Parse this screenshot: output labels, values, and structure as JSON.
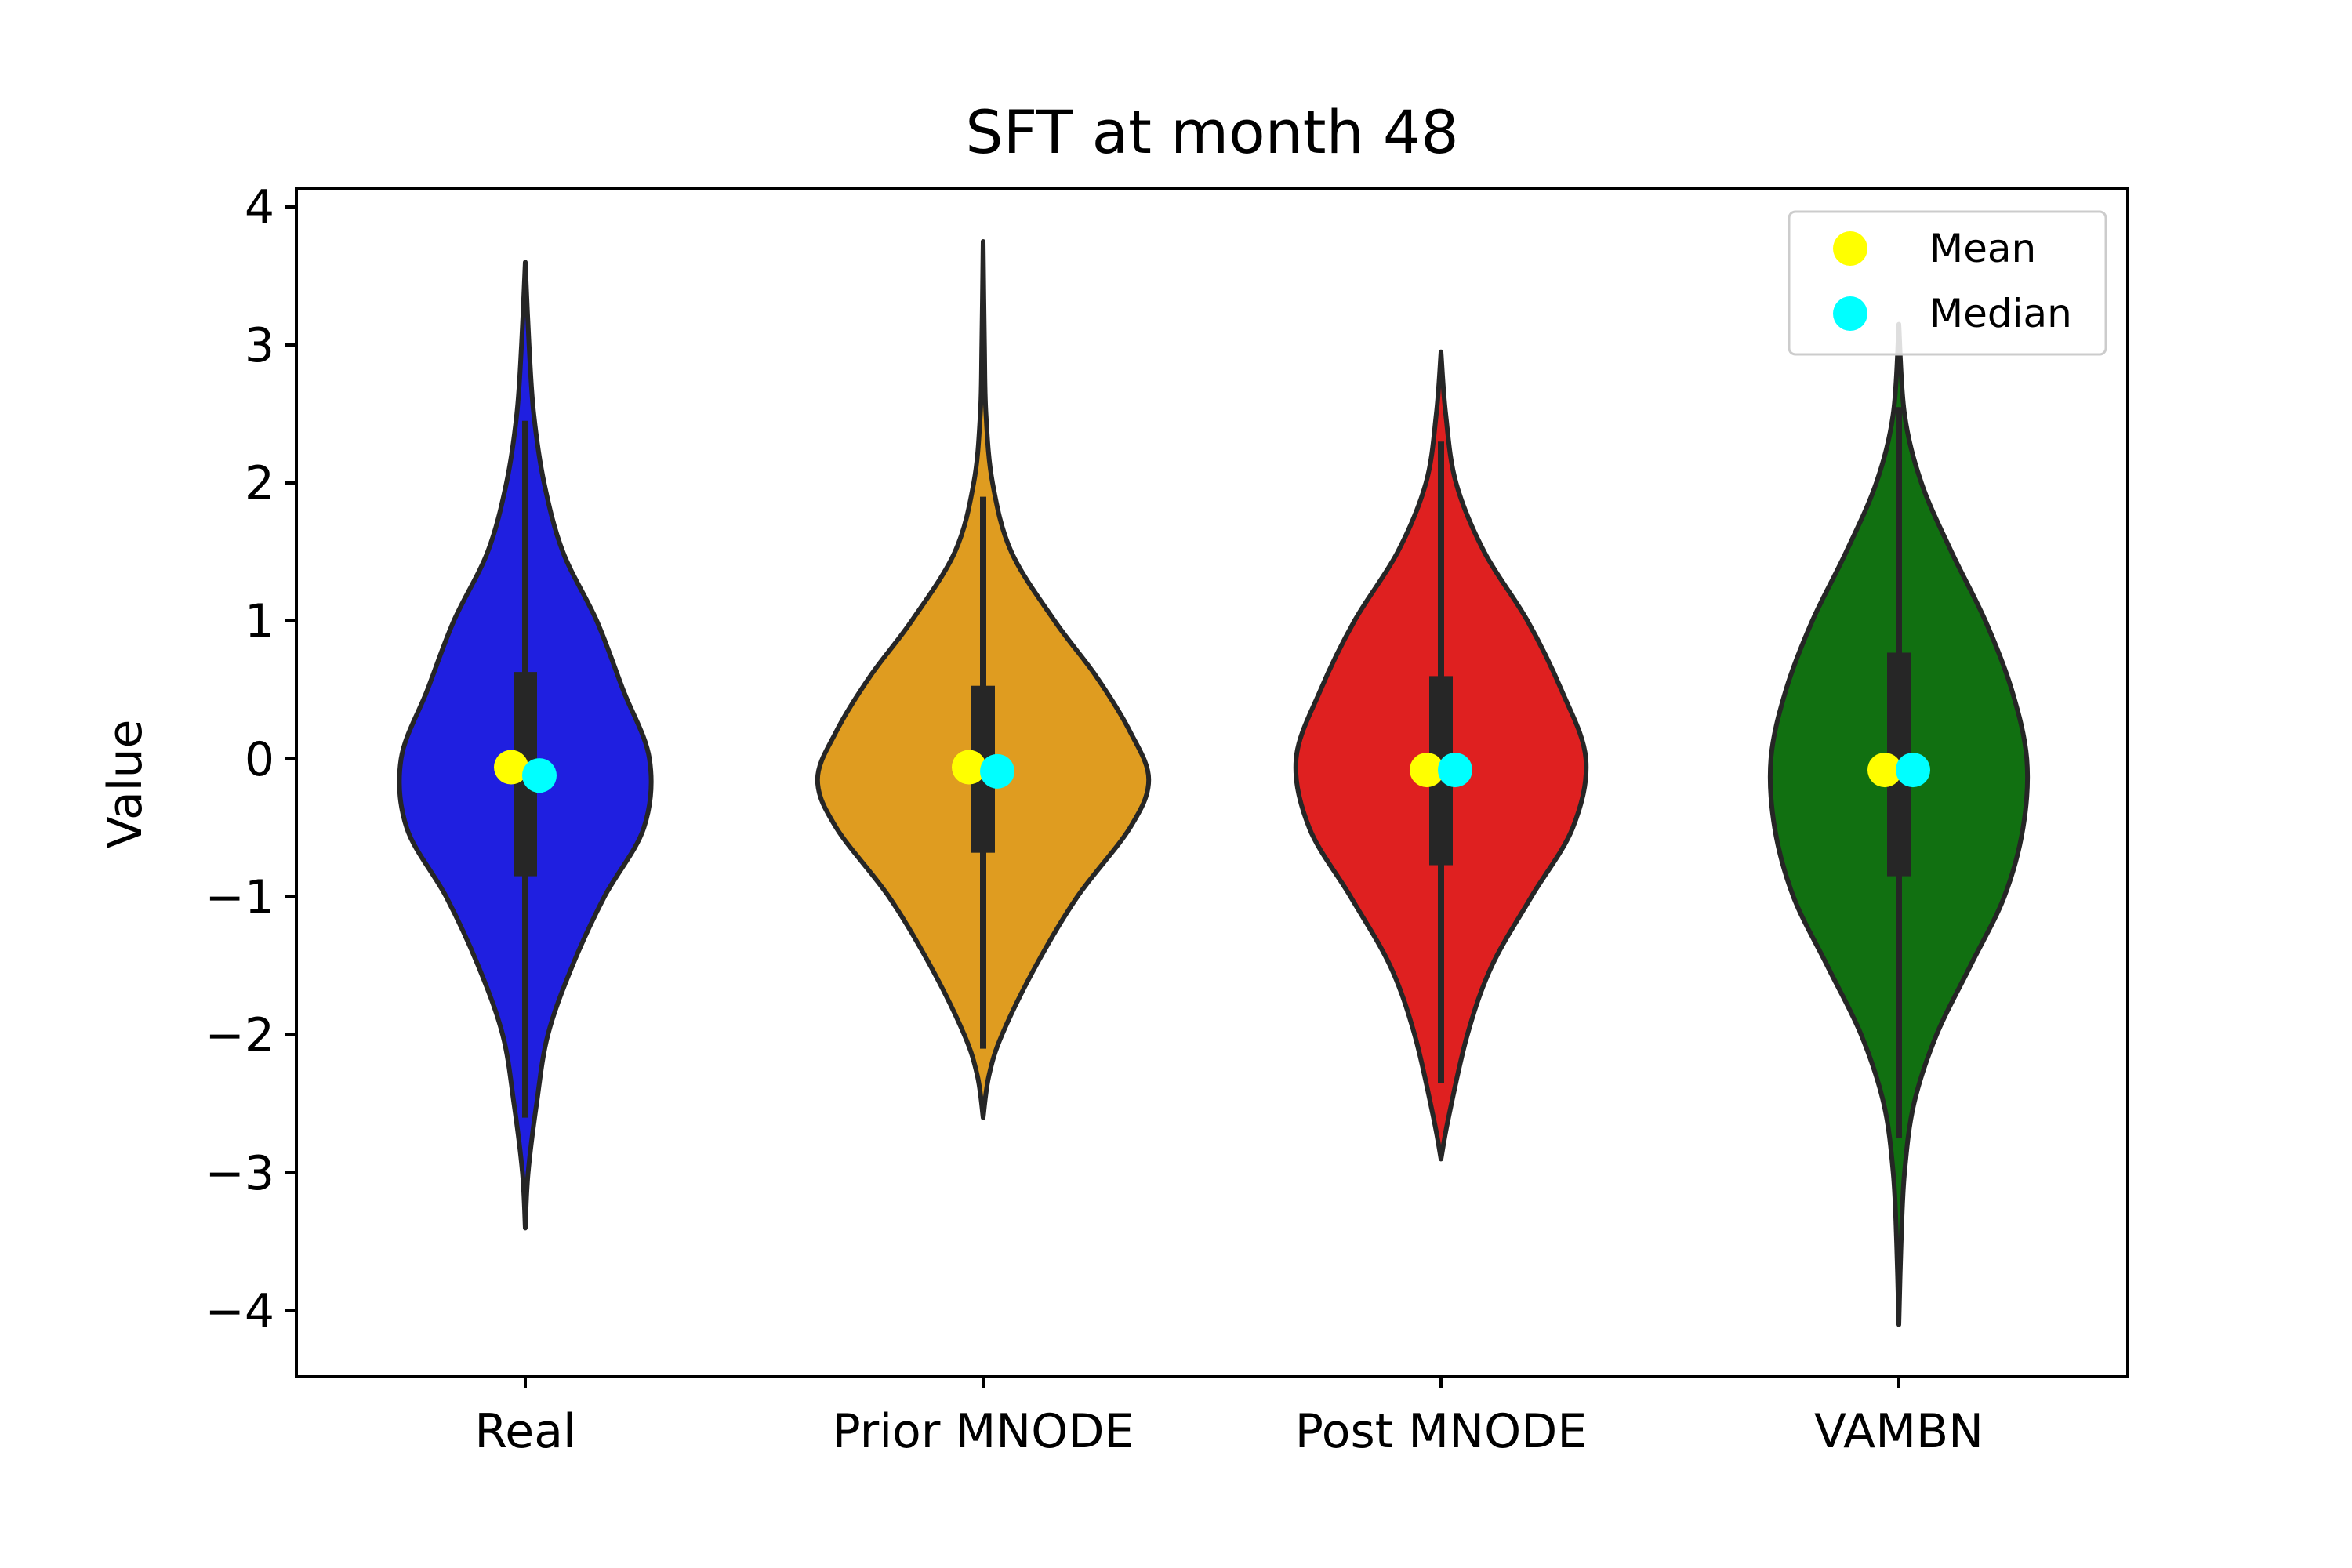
{
  "chart_data": {
    "type": "violin",
    "title": "SFT at month 48",
    "xlabel": "",
    "ylabel": "Value",
    "ylim": [
      -4.5,
      4.15
    ],
    "yticks": [
      {
        "value": 4,
        "label": "4"
      },
      {
        "value": 3,
        "label": "3"
      },
      {
        "value": 2,
        "label": "2"
      },
      {
        "value": 1,
        "label": "1"
      },
      {
        "value": 0,
        "label": "0"
      },
      {
        "value": -1,
        "label": "−1"
      },
      {
        "value": -2,
        "label": "−2"
      },
      {
        "value": -3,
        "label": "−3"
      },
      {
        "value": -4,
        "label": "−4"
      }
    ],
    "grid": false,
    "legend": {
      "placement": "top-right",
      "entries": [
        {
          "label": "Mean",
          "color": "#ffff00"
        },
        {
          "label": "Median",
          "color": "#00ffff"
        }
      ]
    },
    "categories": [
      "Real",
      "Prior MNODE",
      "Post MNODE",
      "VAMBN"
    ],
    "violins": [
      {
        "category": "Real",
        "color": "#1f1fe0",
        "min": -3.4,
        "max": 3.6,
        "whisker_low": -2.6,
        "whisker_high": 2.45,
        "q1": -0.85,
        "q3": 0.63,
        "mean": -0.06,
        "median": -0.12,
        "profile": [
          [
            -3.4,
            0.0
          ],
          [
            -3.0,
            0.015
          ],
          [
            -2.5,
            0.06
          ],
          [
            -2.0,
            0.12
          ],
          [
            -1.5,
            0.25
          ],
          [
            -1.0,
            0.42
          ],
          [
            -0.5,
            0.63
          ],
          [
            0.0,
            0.66
          ],
          [
            0.5,
            0.52
          ],
          [
            1.0,
            0.38
          ],
          [
            1.5,
            0.2
          ],
          [
            2.0,
            0.1
          ],
          [
            2.5,
            0.045
          ],
          [
            3.0,
            0.02
          ],
          [
            3.6,
            0.0
          ]
        ]
      },
      {
        "category": "Prior MNODE",
        "color": "#df9c20",
        "min": -2.6,
        "max": 3.75,
        "whisker_low": -2.1,
        "whisker_high": 1.9,
        "q1": -0.68,
        "q3": 0.53,
        "mean": -0.06,
        "median": -0.09,
        "profile": [
          [
            -2.6,
            0.0
          ],
          [
            -2.3,
            0.03
          ],
          [
            -2.0,
            0.1
          ],
          [
            -1.5,
            0.28
          ],
          [
            -1.0,
            0.5
          ],
          [
            -0.5,
            0.78
          ],
          [
            -0.15,
            0.88
          ],
          [
            0.2,
            0.78
          ],
          [
            0.6,
            0.6
          ],
          [
            1.0,
            0.38
          ],
          [
            1.5,
            0.15
          ],
          [
            2.0,
            0.05
          ],
          [
            2.5,
            0.015
          ],
          [
            3.0,
            0.007
          ],
          [
            3.75,
            0.0
          ]
        ]
      },
      {
        "category": "Post MNODE",
        "color": "#df2020",
        "min": -2.9,
        "max": 2.95,
        "whisker_low": -2.35,
        "whisker_high": 2.3,
        "q1": -0.77,
        "q3": 0.6,
        "mean": -0.08,
        "median": -0.08,
        "profile": [
          [
            -2.9,
            0.0
          ],
          [
            -2.6,
            0.04
          ],
          [
            -2.0,
            0.14
          ],
          [
            -1.5,
            0.27
          ],
          [
            -1.0,
            0.48
          ],
          [
            -0.5,
            0.7
          ],
          [
            0.0,
            0.77
          ],
          [
            0.5,
            0.64
          ],
          [
            1.0,
            0.46
          ],
          [
            1.5,
            0.23
          ],
          [
            2.0,
            0.08
          ],
          [
            2.5,
            0.025
          ],
          [
            2.95,
            0.0
          ]
        ]
      },
      {
        "category": "VAMBN",
        "color": "#117011",
        "min": -4.1,
        "max": 3.15,
        "whisker_low": -2.75,
        "whisker_high": 2.55,
        "q1": -0.85,
        "q3": 0.77,
        "mean": -0.08,
        "median": -0.08,
        "profile": [
          [
            -4.1,
            0.0
          ],
          [
            -3.5,
            0.012
          ],
          [
            -3.0,
            0.03
          ],
          [
            -2.5,
            0.08
          ],
          [
            -2.0,
            0.2
          ],
          [
            -1.5,
            0.38
          ],
          [
            -1.0,
            0.56
          ],
          [
            -0.5,
            0.66
          ],
          [
            0.0,
            0.68
          ],
          [
            0.5,
            0.6
          ],
          [
            1.0,
            0.46
          ],
          [
            1.5,
            0.28
          ],
          [
            2.0,
            0.12
          ],
          [
            2.5,
            0.03
          ],
          [
            3.15,
            0.0
          ]
        ]
      }
    ]
  }
}
